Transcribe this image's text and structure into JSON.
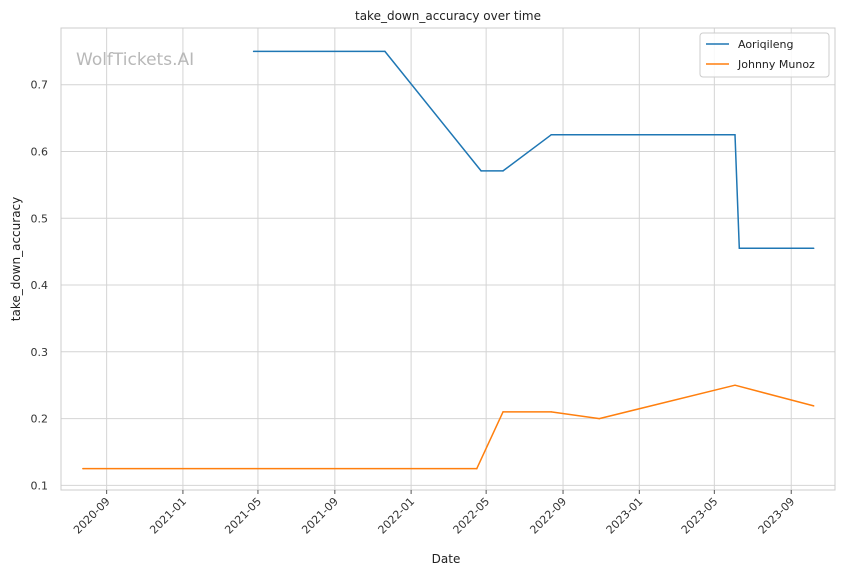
{
  "chart_data": {
    "type": "line",
    "title": "take_down_accuracy over time",
    "xlabel": "Date",
    "ylabel": "take_down_accuracy",
    "watermark": "WolfTickets.AI",
    "grid": true,
    "legend_position": "top-right",
    "xlim": [
      "2020-06-20",
      "2023-11-10"
    ],
    "ylim": [
      0.093,
      0.785
    ],
    "x_ticks": [
      "2020-09-01",
      "2021-01-01",
      "2021-05-01",
      "2021-09-01",
      "2022-01-01",
      "2022-05-01",
      "2022-09-01",
      "2023-01-01",
      "2023-05-01",
      "2023-09-01"
    ],
    "x_tick_labels": [
      "2020-09",
      "2021-01",
      "2021-05",
      "2021-09",
      "2022-01",
      "2022-05",
      "2022-09",
      "2023-01",
      "2023-05",
      "2023-09"
    ],
    "y_ticks": [
      0.1,
      0.2,
      0.3,
      0.4,
      0.5,
      0.6,
      0.7
    ],
    "y_tick_labels": [
      "0.1",
      "0.2",
      "0.3",
      "0.4",
      "0.5",
      "0.6",
      "0.7"
    ],
    "series": [
      {
        "name": "Aoriqileng",
        "color": "#1f77b4",
        "points": [
          {
            "x": "2021-04-24",
            "y": 0.75
          },
          {
            "x": "2021-11-20",
            "y": 0.75
          },
          {
            "x": "2022-04-23",
            "y": 0.571
          },
          {
            "x": "2022-05-28",
            "y": 0.571
          },
          {
            "x": "2022-08-13",
            "y": 0.625
          },
          {
            "x": "2023-06-03",
            "y": 0.625
          },
          {
            "x": "2023-06-10",
            "y": 0.455
          },
          {
            "x": "2023-10-07",
            "y": 0.455
          }
        ]
      },
      {
        "name": "Johnny Munoz",
        "color": "#ff7f0e",
        "points": [
          {
            "x": "2020-07-25",
            "y": 0.125
          },
          {
            "x": "2022-04-16",
            "y": 0.125
          },
          {
            "x": "2022-05-28",
            "y": 0.21
          },
          {
            "x": "2022-08-13",
            "y": 0.21
          },
          {
            "x": "2022-10-29",
            "y": 0.2
          },
          {
            "x": "2023-06-03",
            "y": 0.25
          },
          {
            "x": "2023-10-07",
            "y": 0.219
          }
        ]
      }
    ]
  }
}
